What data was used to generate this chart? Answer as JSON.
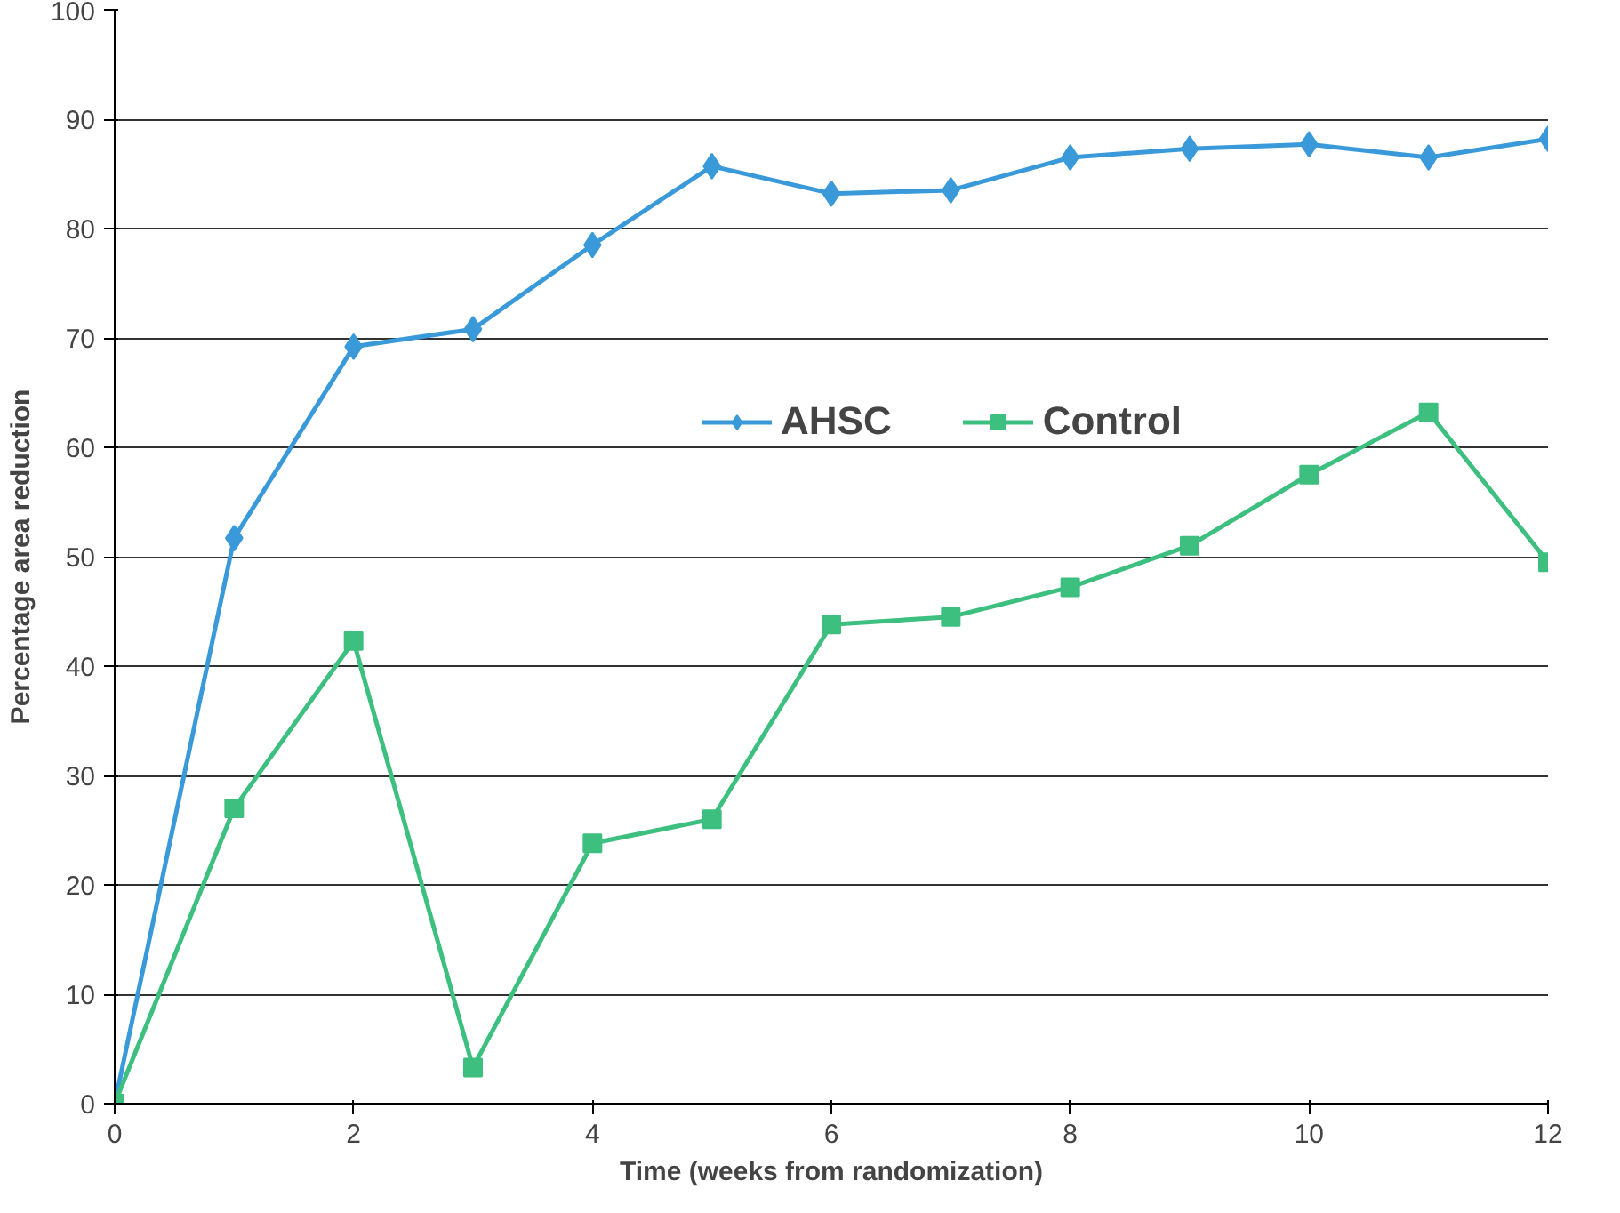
{
  "chart_data": {
    "type": "line",
    "xlabel": "Time (weeks from randomization)",
    "ylabel": "Percentage area reduction",
    "x": [
      0,
      1,
      2,
      3,
      4,
      5,
      6,
      7,
      8,
      9,
      10,
      11,
      12
    ],
    "series": [
      {
        "name": "AHSC",
        "color": "#3a9ad9",
        "marker": "diamond",
        "values": [
          0,
          51.7,
          69.2,
          70.8,
          78.5,
          85.7,
          83.2,
          83.5,
          86.5,
          87.3,
          87.7,
          86.5,
          88.2
        ]
      },
      {
        "name": "Control",
        "color": "#3dbf7f",
        "marker": "square",
        "values": [
          0,
          27,
          42.3,
          3.3,
          23.8,
          26,
          43.8,
          44.5,
          47.2,
          51,
          57.5,
          63.2,
          49.5
        ]
      }
    ],
    "xlim": [
      0,
      12
    ],
    "xticks": [
      0,
      2,
      4,
      6,
      8,
      10,
      12
    ],
    "ylim": [
      0,
      100
    ],
    "yticks": [
      0,
      10,
      20,
      30,
      40,
      50,
      60,
      70,
      80,
      90,
      100
    ],
    "grid": "y",
    "legend": "right",
    "line_style": "solid"
  }
}
